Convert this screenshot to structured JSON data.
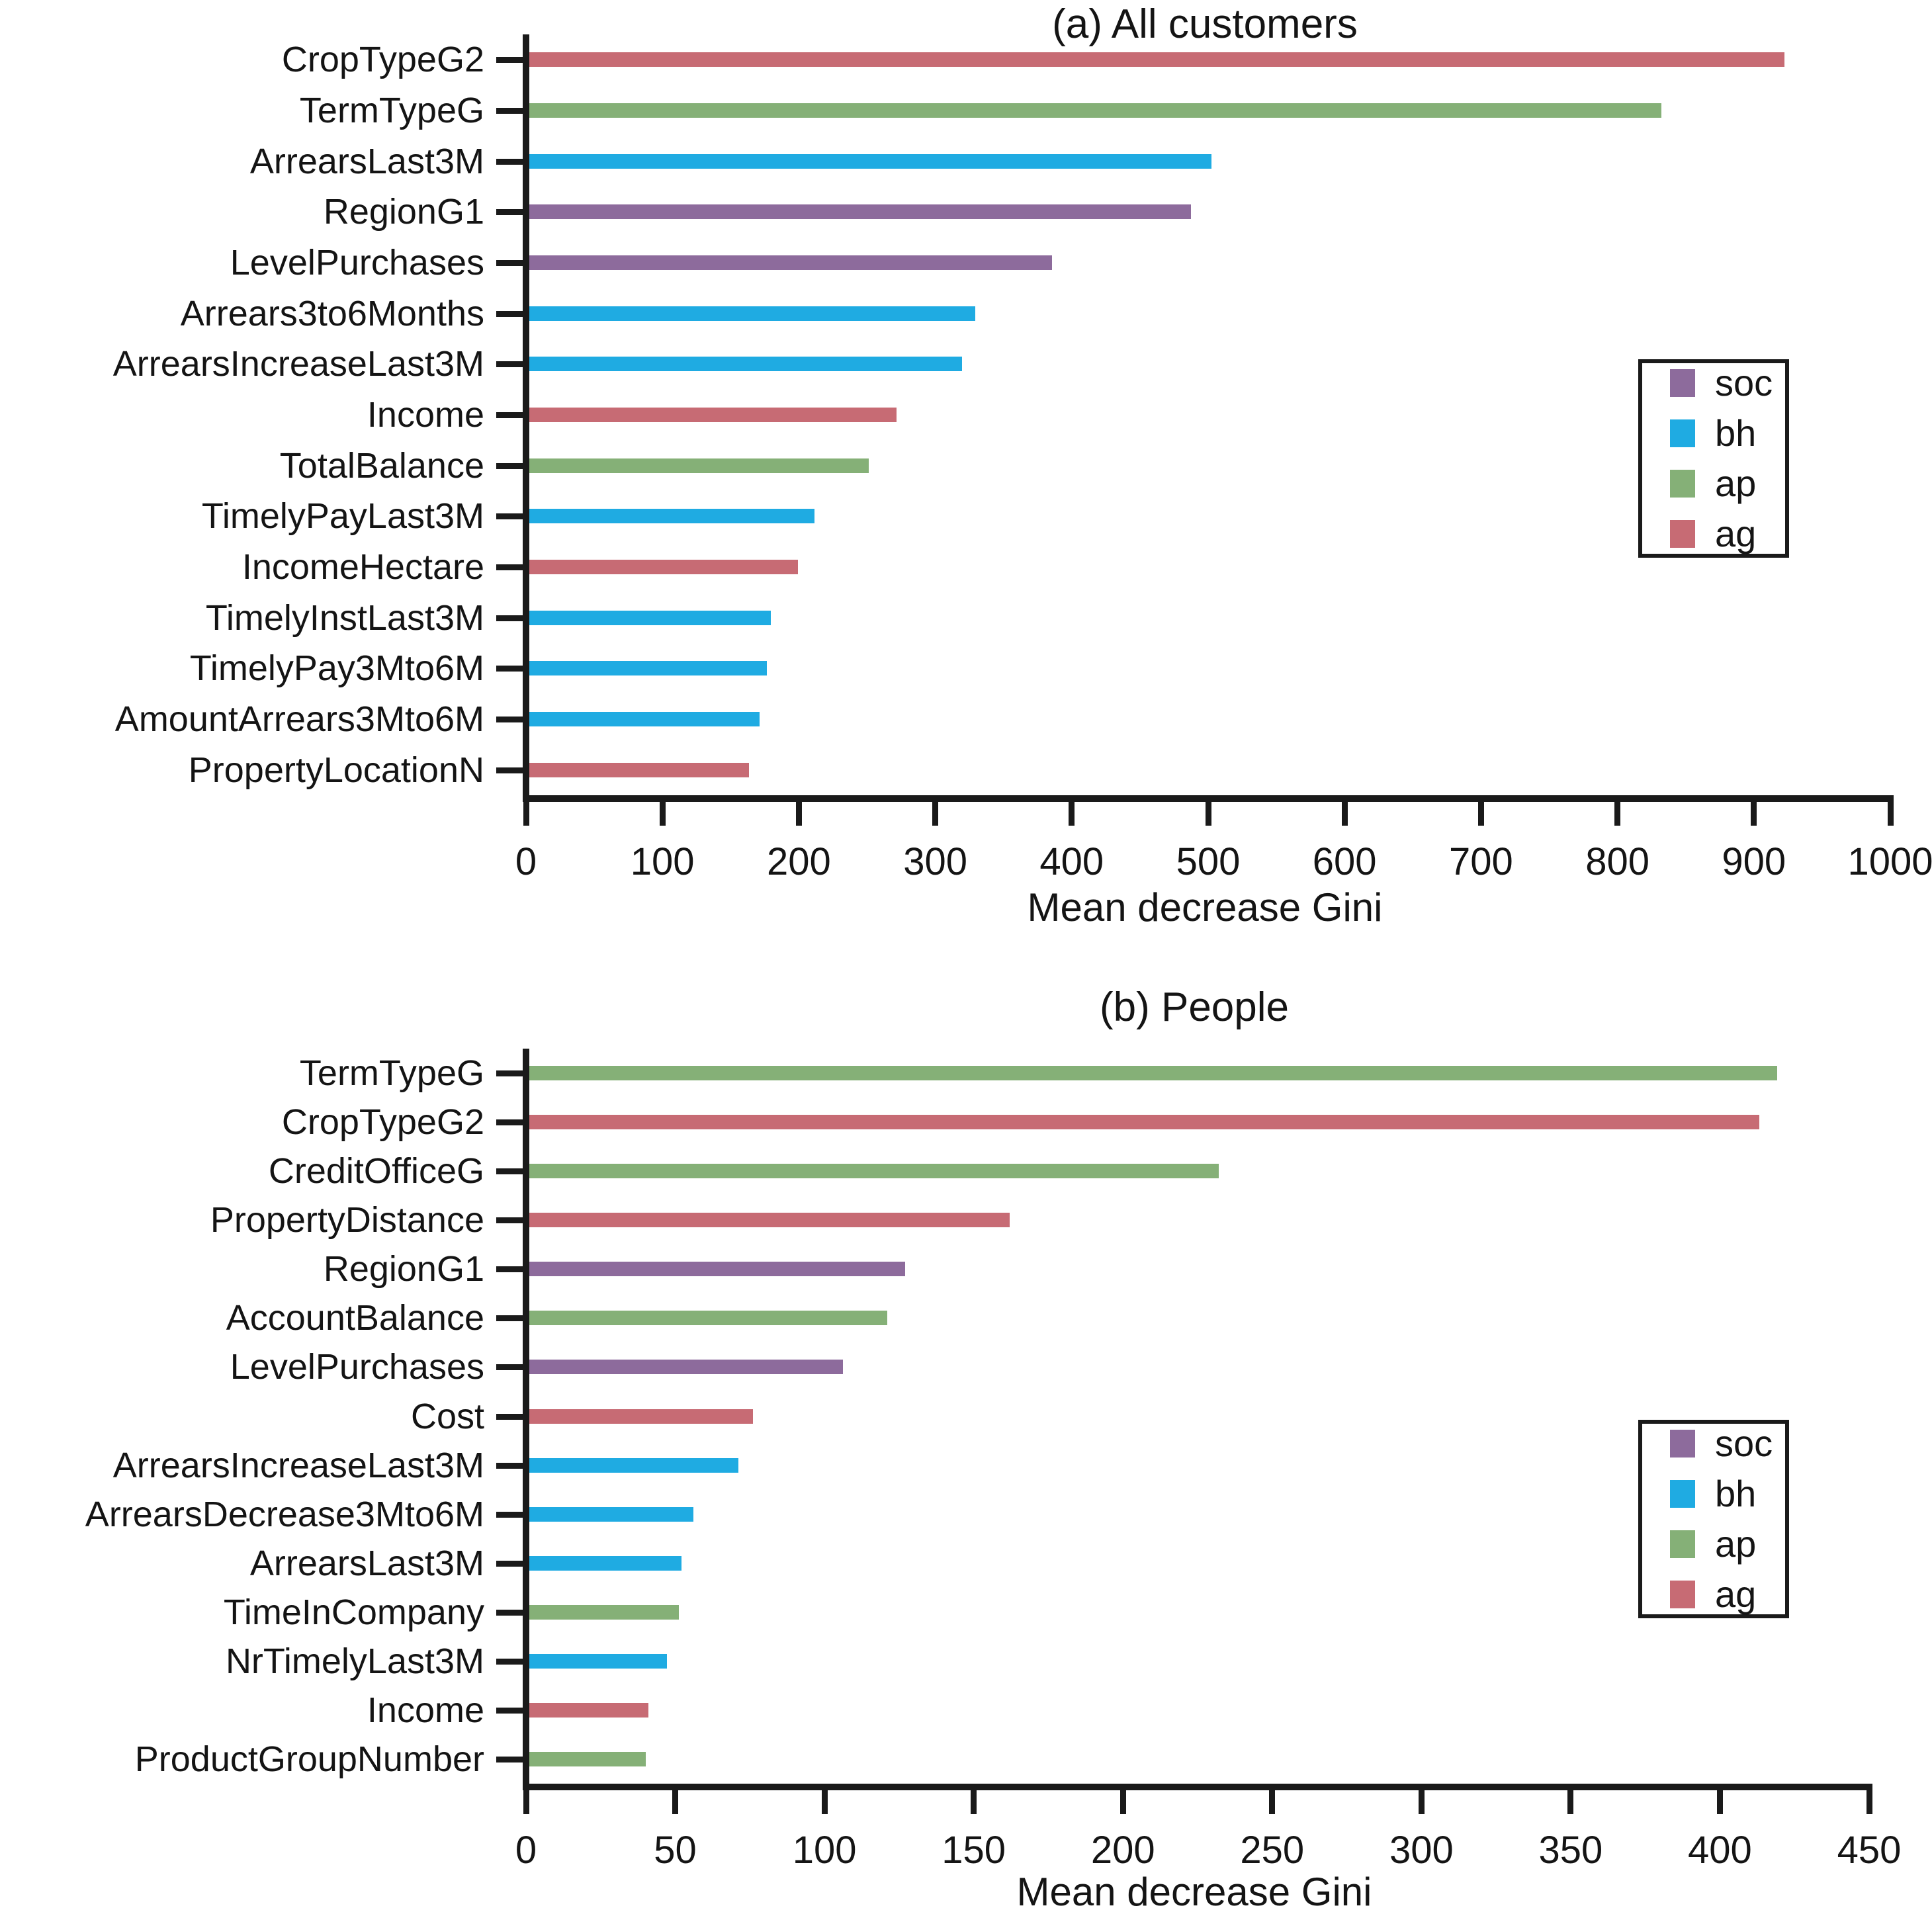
{
  "colors": {
    "soc": "#8d6b9c",
    "bh": "#1fabe2",
    "ap": "#85b077",
    "ag": "#c76b74"
  },
  "legend": {
    "entries": [
      {
        "key": "soc",
        "label": "soc"
      },
      {
        "key": "bh",
        "label": "bh"
      },
      {
        "key": "ap",
        "label": "ap"
      },
      {
        "key": "ag",
        "label": "ag"
      }
    ]
  },
  "chart_data": [
    {
      "id": "a",
      "type": "bar",
      "orientation": "horizontal",
      "title": "(a) All customers",
      "xlabel": "Mean decrease Gini",
      "xlim": [
        0,
        1000
      ],
      "xticks": [
        0,
        100,
        200,
        300,
        400,
        500,
        600,
        700,
        800,
        900,
        1000
      ],
      "grid": false,
      "legend_position": "middle-right",
      "bars": [
        {
          "label": "CropTypeG2",
          "group": "ag",
          "value": 920
        },
        {
          "label": "TermTypeG",
          "group": "ap",
          "value": 830
        },
        {
          "label": "ArrearsLast3M",
          "group": "bh",
          "value": 500
        },
        {
          "label": "RegionG1",
          "group": "soc",
          "value": 485
        },
        {
          "label": "LevelPurchases",
          "group": "soc",
          "value": 383
        },
        {
          "label": "Arrears3to6Months",
          "group": "bh",
          "value": 327
        },
        {
          "label": "ArrearsIncreaseLast3M",
          "group": "bh",
          "value": 317
        },
        {
          "label": "Income",
          "group": "ag",
          "value": 269
        },
        {
          "label": "TotalBalance",
          "group": "ap",
          "value": 249
        },
        {
          "label": "TimelyPayLast3M",
          "group": "bh",
          "value": 209
        },
        {
          "label": "IncomeHectare",
          "group": "ag",
          "value": 197
        },
        {
          "label": "TimelyInstLast3M",
          "group": "bh",
          "value": 177
        },
        {
          "label": "TimelyPay3Mto6M",
          "group": "bh",
          "value": 174
        },
        {
          "label": "AmountArrears3Mto6M",
          "group": "bh",
          "value": 169
        },
        {
          "label": "PropertyLocationN",
          "group": "ag",
          "value": 161
        }
      ]
    },
    {
      "id": "b",
      "type": "bar",
      "orientation": "horizontal",
      "title": "(b) People",
      "xlabel": "Mean decrease Gini",
      "xlim": [
        0,
        450
      ],
      "xticks": [
        0,
        50,
        100,
        150,
        200,
        250,
        300,
        350,
        400,
        450
      ],
      "grid": false,
      "legend_position": "middle-right",
      "bars": [
        {
          "label": "TermTypeG",
          "group": "ap",
          "value": 418
        },
        {
          "label": "CropTypeG2",
          "group": "ag",
          "value": 412
        },
        {
          "label": "CreditOfficeG",
          "group": "ap",
          "value": 231
        },
        {
          "label": "PropertyDistance",
          "group": "ag",
          "value": 161
        },
        {
          "label": "RegionG1",
          "group": "soc",
          "value": 126
        },
        {
          "label": "AccountBalance",
          "group": "ap",
          "value": 120
        },
        {
          "label": "LevelPurchases",
          "group": "soc",
          "value": 105
        },
        {
          "label": "Cost",
          "group": "ag",
          "value": 75
        },
        {
          "label": "ArrearsIncreaseLast3M",
          "group": "bh",
          "value": 70
        },
        {
          "label": "ArrearsDecrease3Mto6M",
          "group": "bh",
          "value": 55
        },
        {
          "label": "ArrearsLast3M",
          "group": "bh",
          "value": 51
        },
        {
          "label": "TimeInCompany",
          "group": "ap",
          "value": 50
        },
        {
          "label": "NrTimelyLast3M",
          "group": "bh",
          "value": 46
        },
        {
          "label": "Income",
          "group": "ag",
          "value": 40
        },
        {
          "label": "ProductGroupNumber",
          "group": "ap",
          "value": 39
        }
      ]
    }
  ]
}
